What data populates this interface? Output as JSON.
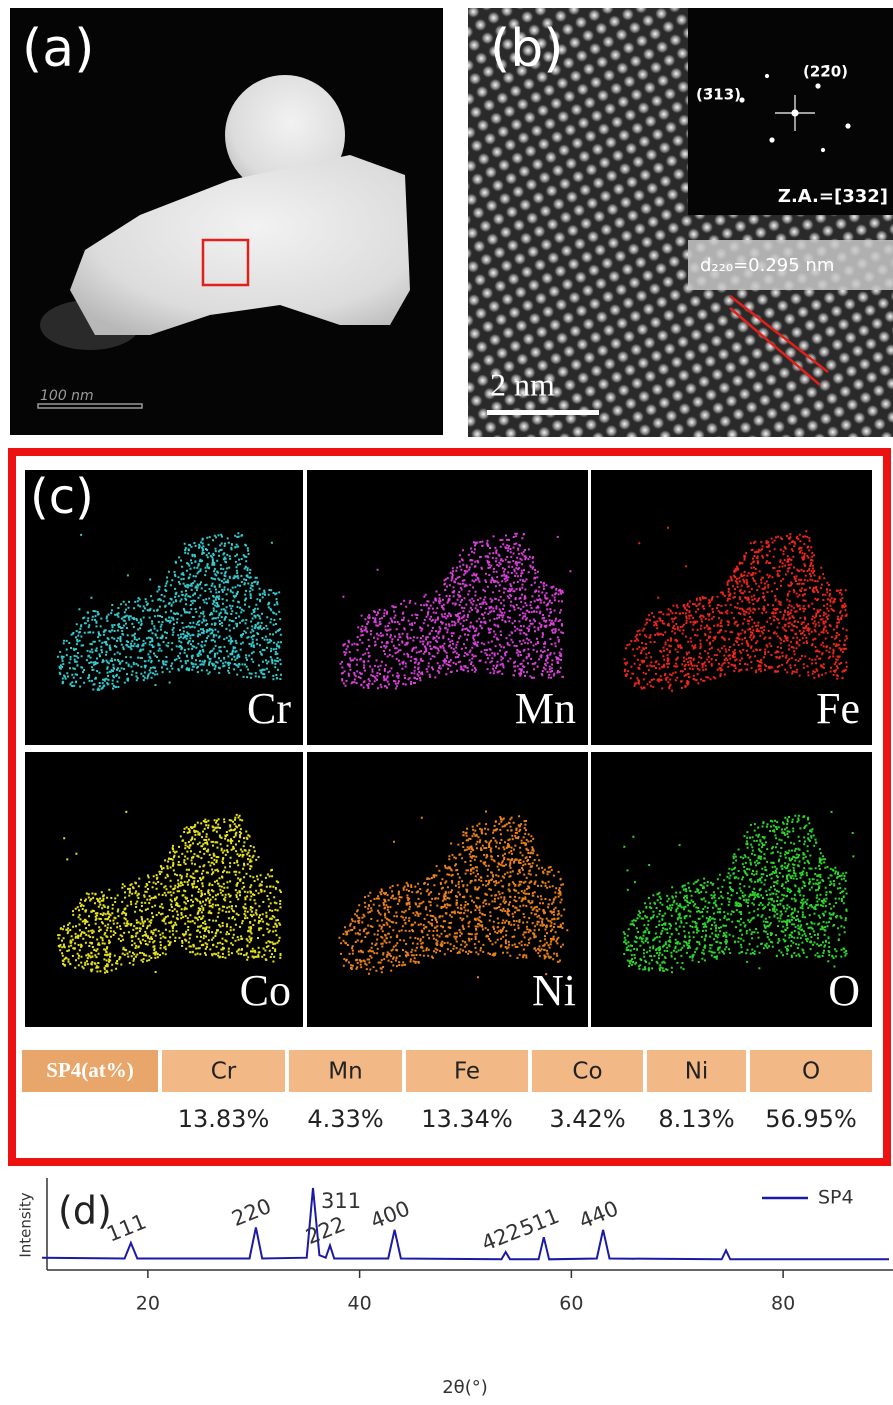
{
  "panel_a": {
    "label": "(a)",
    "scale_bar": "100 nm"
  },
  "panel_b": {
    "label": "(b)",
    "fft_labels": [
      "(3̄13)",
      "(22̄0)"
    ],
    "zone_axis": "Z.A.=[332]",
    "d_spacing": "d₂₂₀=0.295 nm",
    "scale_bar": "2 nm"
  },
  "panel_c": {
    "label": "(c)",
    "maps": [
      {
        "element": "Cr",
        "color": "#35c8cc"
      },
      {
        "element": "Mn",
        "color": "#d640d6"
      },
      {
        "element": "Fe",
        "color": "#e8261c"
      },
      {
        "element": "Co",
        "color": "#e6e21c"
      },
      {
        "element": "Ni",
        "color": "#e8801c"
      },
      {
        "element": "O",
        "color": "#2ed42e"
      }
    ],
    "table": {
      "header": [
        "SP4(at%)",
        "Cr",
        "Mn",
        "Fe",
        "Co",
        "Ni",
        "O"
      ],
      "values": [
        "13.83%",
        "4.33%",
        "13.34%",
        "3.42%",
        "8.13%",
        "56.95%"
      ]
    }
  },
  "chart_data": {
    "type": "line",
    "label": "(d)",
    "xlabel": "2θ(°)",
    "ylabel": "Intensity",
    "xlim": [
      10,
      90
    ],
    "xticks": [
      20,
      40,
      60,
      80
    ],
    "ylim": [
      0,
      100
    ],
    "series": [
      {
        "name": "SP4",
        "color": "#1a1aa6",
        "x": [
          10,
          17.8,
          18.4,
          19.0,
          29.6,
          30.2,
          30.8,
          35.0,
          35.6,
          36.2,
          36.8,
          37.2,
          37.6,
          42.7,
          43.3,
          43.9,
          53.4,
          53.8,
          54.2,
          56.9,
          57.4,
          57.9,
          62.4,
          63.0,
          63.6,
          74.2,
          74.6,
          75.0,
          90
        ],
        "values": [
          15,
          14,
          33,
          14,
          14,
          52,
          14,
          15,
          100,
          18,
          15,
          30,
          14,
          14,
          49,
          14,
          13,
          22,
          13,
          13,
          40,
          13,
          14,
          49,
          14,
          13,
          24,
          13,
          13
        ]
      }
    ],
    "annotations": [
      {
        "text": "111",
        "x": 18.4
      },
      {
        "text": "220",
        "x": 30.2
      },
      {
        "text": "311",
        "x": 35.6
      },
      {
        "text": "222",
        "x": 37.2
      },
      {
        "text": "400",
        "x": 43.3
      },
      {
        "text": "422",
        "x": 53.8
      },
      {
        "text": "511",
        "x": 57.4
      },
      {
        "text": "440",
        "x": 63.0
      }
    ]
  }
}
